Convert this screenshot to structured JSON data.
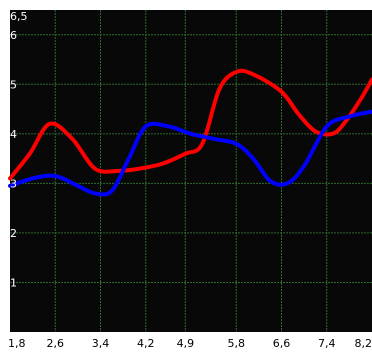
{
  "chart_data": {
    "type": "line",
    "title": "",
    "xlabel": "",
    "ylabel": "",
    "xlim": [
      1.8,
      8.2
    ],
    "ylim": [
      0,
      6.5
    ],
    "grid": true,
    "x_ticks": [
      "1,8",
      "2,6",
      "3,4",
      "4,2",
      "4,9",
      "5,8",
      "6,6",
      "7,4",
      "8,2"
    ],
    "y_ticks": [
      "1",
      "2",
      "3",
      "4",
      "5",
      "6",
      "6,5"
    ],
    "colors": {
      "background": "#080808",
      "grid": "#2f6a2f",
      "frame": "#ffffff"
    },
    "series": [
      {
        "color": "#ff0000",
        "x": [
          1.8,
          2.15,
          2.5,
          2.9,
          3.3,
          3.7,
          4.1,
          4.5,
          4.9,
          5.2,
          5.5,
          5.8,
          6.1,
          6.6,
          6.9,
          7.2,
          7.5,
          7.7,
          8.0,
          8.2
        ],
        "y": [
          3.1,
          3.6,
          4.2,
          3.9,
          3.3,
          3.25,
          3.3,
          3.4,
          3.6,
          3.8,
          4.9,
          5.25,
          5.2,
          4.85,
          4.4,
          4.05,
          4.0,
          4.2,
          4.7,
          5.1
        ]
      },
      {
        "color": "#0000ff",
        "x": [
          1.8,
          2.2,
          2.6,
          3.0,
          3.3,
          3.6,
          3.9,
          4.2,
          4.6,
          5.0,
          5.4,
          5.8,
          6.1,
          6.4,
          6.7,
          7.0,
          7.4,
          7.8,
          8.2
        ],
        "y": [
          2.95,
          3.1,
          3.15,
          2.95,
          2.8,
          2.85,
          3.5,
          4.15,
          4.15,
          4.0,
          3.9,
          3.8,
          3.5,
          3.05,
          3.0,
          3.35,
          4.15,
          4.35,
          4.45
        ]
      }
    ]
  }
}
